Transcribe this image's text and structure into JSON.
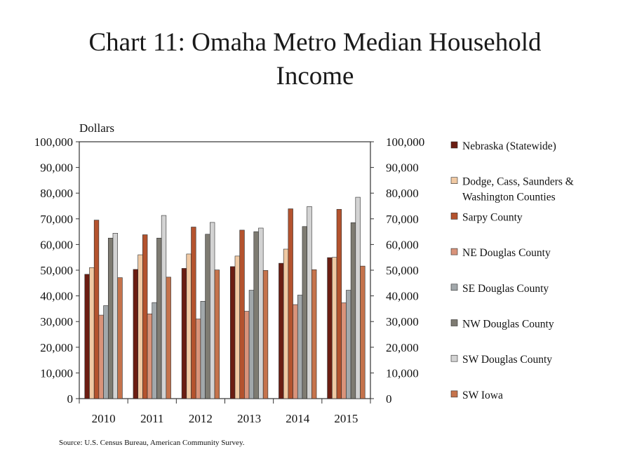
{
  "chart_data": {
    "type": "bar",
    "title_lines": [
      "Chart 11: Omaha Metro Median Household",
      "Income"
    ],
    "ylabel": "Dollars",
    "source": "Source: U.S. Census Bureau, American Community Survey.",
    "ylim": [
      0,
      100000
    ],
    "ytick_values": [
      0,
      10000,
      20000,
      30000,
      40000,
      50000,
      60000,
      70000,
      80000,
      90000,
      100000
    ],
    "ytick_labels": [
      "0",
      "10,000",
      "20,000",
      "30,000",
      "40,000",
      "50,000",
      "60,000",
      "70,000",
      "80,000",
      "90,000",
      "100,000"
    ],
    "right_axis_mirrored": true,
    "legend_position": "right",
    "grid": false,
    "categories": [
      "2010",
      "2011",
      "2012",
      "2013",
      "2014",
      "2015"
    ],
    "series": [
      {
        "name": "Nebraska (Statewide)",
        "legend_lines": [
          "Nebraska (Statewide)"
        ],
        "color": "#6b1d12",
        "values": [
          48400,
          50300,
          50700,
          51400,
          52700,
          54900
        ]
      },
      {
        "name": "Dodge, Cass, Saunders & Washington Counties",
        "legend_lines": [
          "Dodge, Cass, Saunders &",
          "Washington Counties"
        ],
        "color": "#f0c9a3",
        "values": [
          51000,
          56000,
          56300,
          55500,
          58200,
          55000
        ]
      },
      {
        "name": "Sarpy County",
        "legend_lines": [
          "Sarpy County"
        ],
        "color": "#b4532e",
        "values": [
          69500,
          63800,
          66800,
          65600,
          73900,
          73700
        ]
      },
      {
        "name": "NE Douglas County",
        "legend_lines": [
          "NE Douglas County"
        ],
        "color": "#d9937a",
        "values": [
          32500,
          33000,
          31000,
          34000,
          36600,
          37300
        ]
      },
      {
        "name": "SE Douglas County",
        "legend_lines": [
          "SE Douglas County"
        ],
        "color": "#a2a8ab",
        "values": [
          36200,
          37400,
          37900,
          42200,
          40300,
          42200
        ]
      },
      {
        "name": "NW Douglas County",
        "legend_lines": [
          "NW Douglas County"
        ],
        "color": "#7e7b72",
        "values": [
          62500,
          62500,
          64000,
          65000,
          67000,
          68500
        ]
      },
      {
        "name": "SW Douglas County",
        "legend_lines": [
          "SW Douglas County"
        ],
        "color": "#d3d3d3",
        "values": [
          64400,
          71300,
          68600,
          66400,
          74800,
          78400
        ]
      },
      {
        "name": "SW Iowa",
        "legend_lines": [
          "SW Iowa"
        ],
        "color": "#c5734c",
        "values": [
          47100,
          47300,
          50100,
          49900,
          50200,
          51600
        ]
      }
    ]
  }
}
